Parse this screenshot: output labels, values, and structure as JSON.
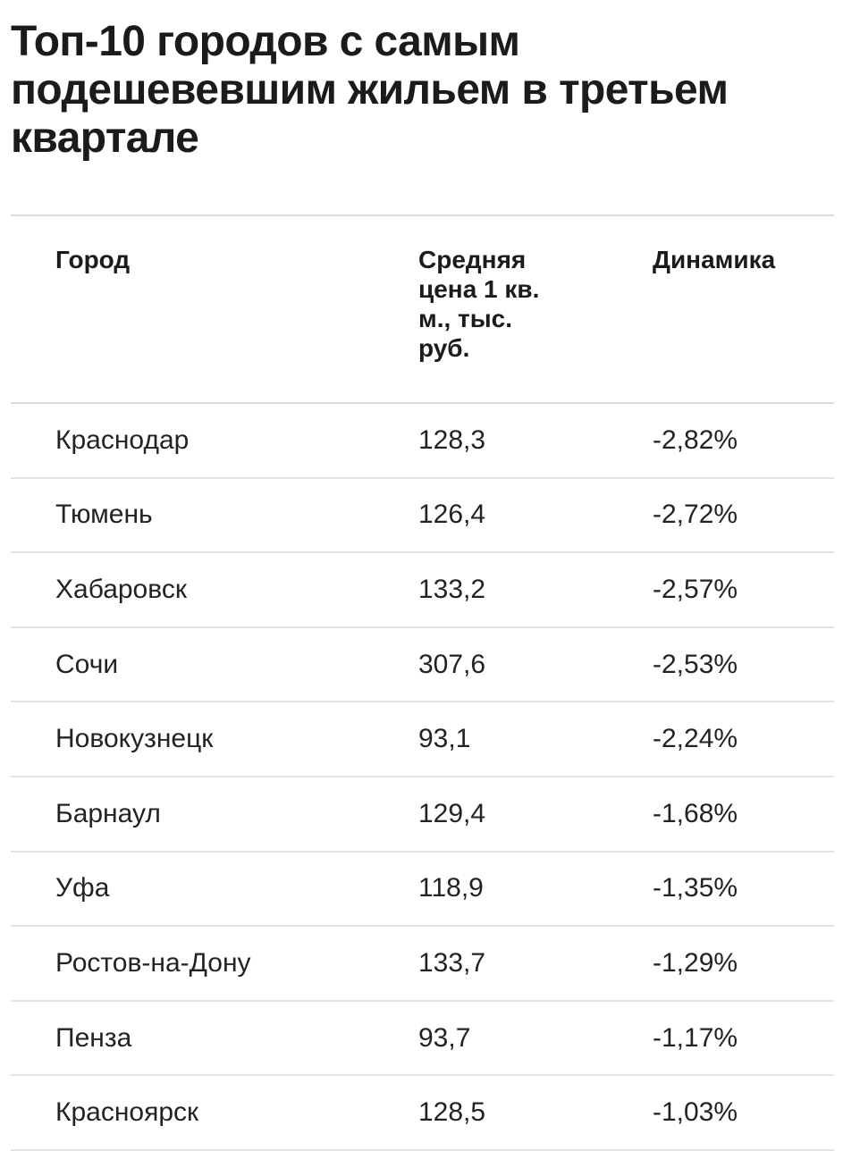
{
  "page": {
    "title": "Топ-10 городов с самым подешевевшим жильем в третьем квартале"
  },
  "table": {
    "columns": [
      {
        "key": "city",
        "label": "Город"
      },
      {
        "key": "price",
        "label": "Средняя цена 1 кв. м., тыс. руб."
      },
      {
        "key": "dynamics",
        "label": "Динамика"
      }
    ],
    "rows": [
      {
        "city": "Краснодар",
        "price": "128,3",
        "dynamics": "-2,82%"
      },
      {
        "city": "Тюмень",
        "price": "126,4",
        "dynamics": "-2,72%"
      },
      {
        "city": "Хабаровск",
        "price": "133,2",
        "dynamics": "-2,57%"
      },
      {
        "city": "Сочи",
        "price": "307,6",
        "dynamics": "-2,53%"
      },
      {
        "city": "Новокузнецк",
        "price": "93,1",
        "dynamics": "-2,24%"
      },
      {
        "city": "Барнаул",
        "price": "129,4",
        "dynamics": "-1,68%"
      },
      {
        "city": "Уфа",
        "price": "118,9",
        "dynamics": "-1,35%"
      },
      {
        "city": "Ростов-на-Дону",
        "price": "133,7",
        "dynamics": "-1,29%"
      },
      {
        "city": "Пенза",
        "price": "93,7",
        "dynamics": "-1,17%"
      },
      {
        "city": "Красноярск",
        "price": "128,5",
        "dynamics": "-1,03%"
      }
    ]
  },
  "chart_data": {
    "type": "table",
    "title": "Топ-10 городов с самым подешевевшим жильем в третьем квартале",
    "columns": [
      "Город",
      "Средняя цена 1 кв. м., тыс. руб.",
      "Динамика"
    ],
    "rows": [
      [
        "Краснодар",
        128.3,
        -2.82
      ],
      [
        "Тюмень",
        126.4,
        -2.72
      ],
      [
        "Хабаровск",
        133.2,
        -2.57
      ],
      [
        "Сочи",
        307.6,
        -2.53
      ],
      [
        "Новокузнецк",
        93.1,
        -2.24
      ],
      [
        "Барнаул",
        129.4,
        -1.68
      ],
      [
        "Уфа",
        118.9,
        -1.35
      ],
      [
        "Ростов-на-Дону",
        133.7,
        -1.29
      ],
      [
        "Пенза",
        93.7,
        -1.17
      ],
      [
        "Красноярск",
        128.5,
        -1.03
      ]
    ],
    "value_units": {
      "price": "тыс. руб. за 1 кв. м",
      "dynamics": "%"
    }
  },
  "colors": {
    "background": "#ffffff",
    "title_text": "#1b1b1d",
    "body_text": "#232325",
    "header_border": "#dbdbdb",
    "row_divider": "#e3e3e3"
  }
}
